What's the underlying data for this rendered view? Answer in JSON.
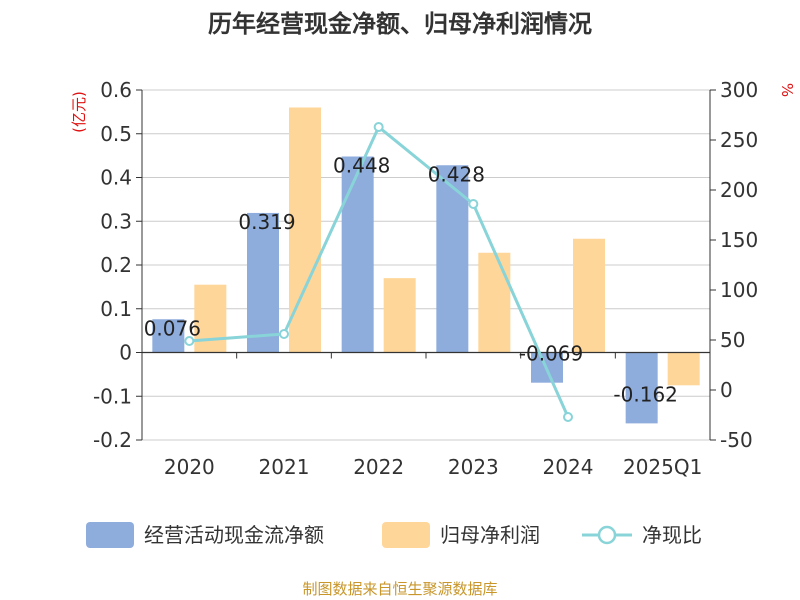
{
  "chart_data": {
    "type": "bar",
    "title": "历年经营现金净额、归母净利润情况",
    "categories": [
      "2020",
      "2021",
      "2022",
      "2023",
      "2024",
      "2025Q1"
    ],
    "left_axis": {
      "unit": "(亿元)",
      "ticks": [
        "0.6",
        "0.5",
        "0.4",
        "0.3",
        "0.2",
        "0.1",
        "0",
        "-0.1",
        "-0.2"
      ],
      "range": [
        -0.2,
        0.6
      ]
    },
    "right_axis": {
      "unit": "%",
      "ticks": [
        "300",
        "250",
        "200",
        "150",
        "100",
        "50",
        "0",
        "-50"
      ],
      "range": [
        -50,
        300
      ]
    },
    "series": [
      {
        "name": "经营活动现金流净额",
        "kind": "bar",
        "axis": "left",
        "color": "#8eacdc",
        "values": [
          0.076,
          0.319,
          0.448,
          0.428,
          -0.069,
          -0.162
        ],
        "labels": [
          "0.076",
          "0.319",
          "0.448",
          "0.428",
          "-0.069",
          "-0.162"
        ]
      },
      {
        "name": "归母净利润",
        "kind": "bar",
        "axis": "left",
        "color": "#ffd699",
        "values": [
          0.155,
          0.56,
          0.17,
          0.228,
          0.26,
          -0.075
        ]
      },
      {
        "name": "净现比",
        "kind": "line",
        "axis": "right",
        "color": "#88d4d8",
        "values": [
          49,
          56,
          263,
          186,
          -27,
          null
        ]
      }
    ],
    "legend_position": "bottom",
    "grid": true
  },
  "footer": {
    "source": "制图数据来自恒生聚源数据库"
  }
}
